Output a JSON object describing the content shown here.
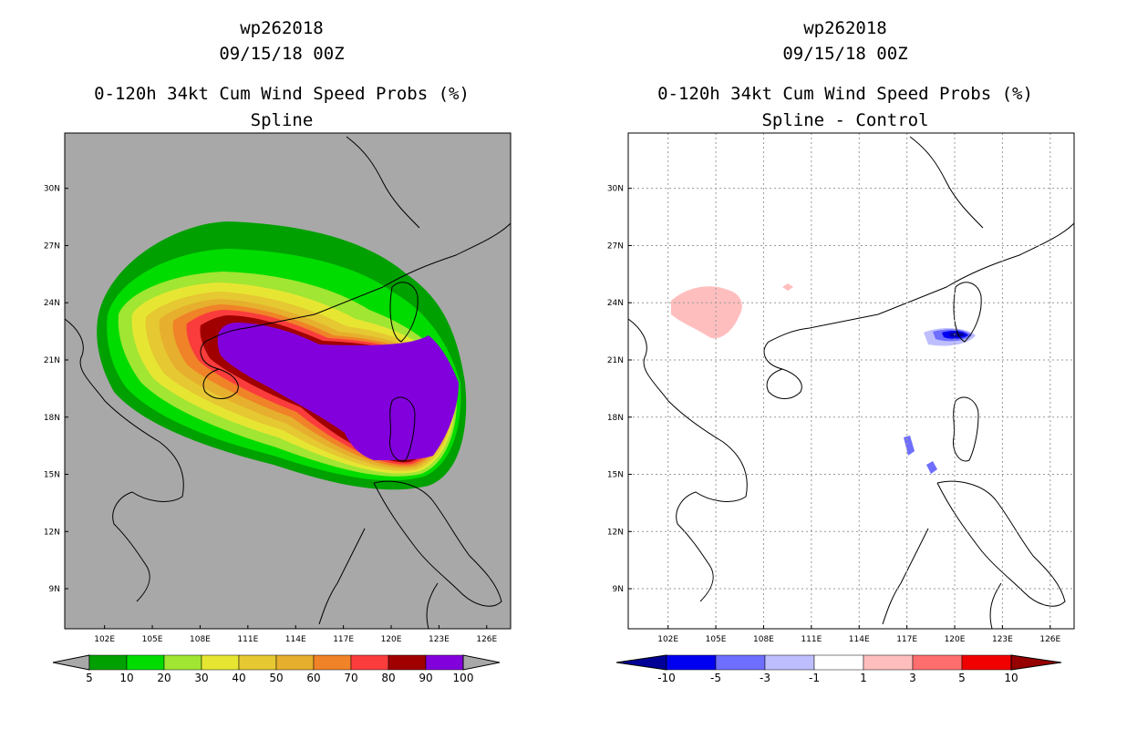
{
  "left": {
    "storm_id": "wp262018",
    "datetime": "09/15/18 00Z",
    "product": "0-120h 34kt Cum Wind Speed Probs (%)",
    "subtitle": "Spline",
    "background": "#a8a8a8",
    "colorbar": {
      "labels": [
        "5",
        "10",
        "20",
        "30",
        "40",
        "50",
        "60",
        "70",
        "80",
        "90",
        "100"
      ],
      "colors": [
        "#00a000",
        "#00dc00",
        "#a0e632",
        "#e6e632",
        "#e6c832",
        "#e6af2d",
        "#f08228",
        "#fa3c3c",
        "#a00000",
        "#8200dc"
      ]
    }
  },
  "right": {
    "storm_id": "wp262018",
    "datetime": "09/15/18 00Z",
    "product": "0-120h 34kt Cum Wind Speed Probs (%)",
    "subtitle": "Spline - Control",
    "background": "#ffffff",
    "colorbar": {
      "labels": [
        "-10",
        "-5",
        "-3",
        "-1",
        "1",
        "3",
        "5",
        "10"
      ],
      "colors": [
        "#000096",
        "#0000f0",
        "#6e6eff",
        "#bebeff",
        "#ffffff",
        "#ffbebe",
        "#ff6e6e",
        "#f00000",
        "#960000"
      ]
    }
  },
  "axes": {
    "lon_labels": [
      "102E",
      "105E",
      "108E",
      "111E",
      "114E",
      "117E",
      "120E",
      "123E",
      "126E"
    ],
    "lat_labels": [
      "30N",
      "27N",
      "24N",
      "21N",
      "18N",
      "15N",
      "12N",
      "9N"
    ]
  }
}
